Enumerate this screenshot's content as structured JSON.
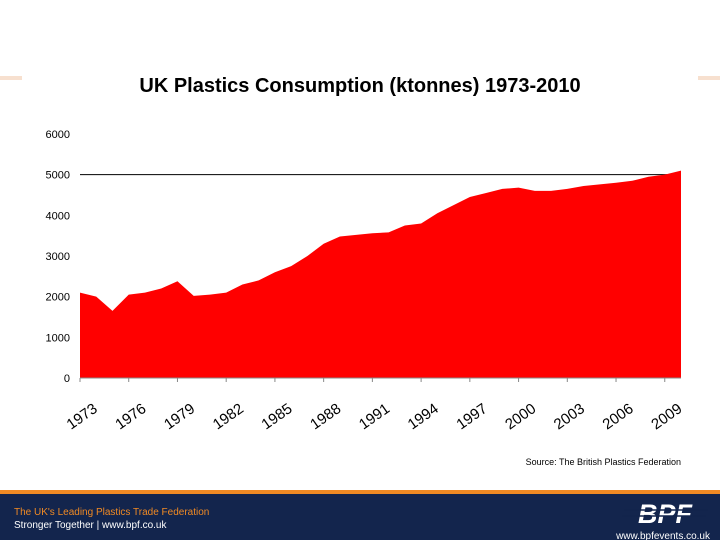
{
  "chart_data": {
    "type": "area",
    "title": "UK Plastics Consumption (ktonnes) 1973-2010",
    "xlabel": "",
    "ylabel": "",
    "ylim": [
      0,
      6000
    ],
    "yticks": [
      0,
      1000,
      2000,
      3000,
      4000,
      5000,
      6000
    ],
    "xtick_labels": [
      "1973",
      "1976",
      "1979",
      "1982",
      "1985",
      "1988",
      "1991",
      "1994",
      "1997",
      "2000",
      "2003",
      "2006",
      "2009"
    ],
    "x": [
      1973,
      1974,
      1975,
      1976,
      1977,
      1978,
      1979,
      1980,
      1981,
      1982,
      1983,
      1984,
      1985,
      1986,
      1987,
      1988,
      1989,
      1990,
      1991,
      1992,
      1993,
      1994,
      1995,
      1996,
      1997,
      1998,
      1999,
      2000,
      2001,
      2002,
      2003,
      2004,
      2005,
      2006,
      2007,
      2008,
      2009,
      2010
    ],
    "values": [
      2100,
      2000,
      1650,
      2050,
      2100,
      2200,
      2380,
      2020,
      2050,
      2100,
      2300,
      2400,
      2600,
      2750,
      3000,
      3300,
      3480,
      3520,
      3560,
      3580,
      3750,
      3800,
      4050,
      4250,
      4450,
      4550,
      4650,
      4680,
      4600,
      4600,
      4650,
      4720,
      4760,
      4800,
      4850,
      4950,
      5000,
      5100
    ],
    "fill_color": "#ff0000",
    "grid": "major y gridlines at 5000 only",
    "source": "Source: The British Plastics Federation"
  },
  "footer": {
    "line1": "The UK's Leading Plastics Trade Federation",
    "line2": "Stronger Together | www.bpf.co.uk",
    "url": "www.bpfevents.co.uk",
    "logo_text": "BPF",
    "bg_color": "#13254d",
    "accent_color": "#f08a24"
  }
}
